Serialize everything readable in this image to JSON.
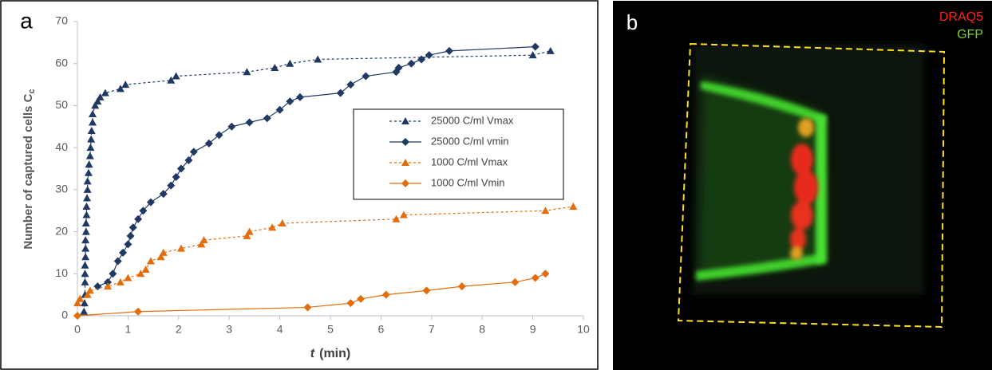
{
  "chart_data": {
    "type": "line",
    "panel_label": "a",
    "xlabel_var": "t",
    "xlabel_unit": "(min)",
    "ylabel": "Number of captured cells C",
    "ylabel_subscript": "c",
    "xlim": [
      0,
      10
    ],
    "xticks": [
      0,
      1,
      2,
      3,
      4,
      5,
      6,
      7,
      8,
      9,
      10
    ],
    "ylim": [
      0,
      70
    ],
    "yticks": [
      0,
      10,
      20,
      30,
      40,
      50,
      60,
      70
    ],
    "grid": false,
    "legend": "right",
    "series": [
      {
        "name": "25000 C/ml Vmax",
        "color": "#1f3864",
        "marker": "triangle",
        "dashed": true,
        "x": [
          0.13,
          0.14,
          0.15,
          0.15,
          0.15,
          0.15,
          0.16,
          0.16,
          0.16,
          0.17,
          0.17,
          0.18,
          0.18,
          0.19,
          0.2,
          0.2,
          0.22,
          0.23,
          0.25,
          0.26,
          0.27,
          0.28,
          0.3,
          0.3,
          0.35,
          0.4,
          0.45,
          0.55,
          0.85,
          0.95,
          1.85,
          1.95,
          3.35,
          3.9,
          4.2,
          4.75,
          9.0,
          9.35
        ],
        "values": [
          1,
          3,
          5,
          8,
          10,
          12,
          14,
          16,
          18,
          20,
          22,
          24,
          26,
          28,
          30,
          32,
          34,
          36,
          38,
          40,
          42,
          44,
          46,
          48,
          50,
          51,
          52,
          53,
          54,
          55,
          56,
          57,
          58,
          59,
          60,
          61,
          62,
          63
        ]
      },
      {
        "name": "25000 C/ml vmin",
        "color": "#1f3864",
        "marker": "diamond",
        "dashed": false,
        "x": [
          0.4,
          0.6,
          0.7,
          0.8,
          0.9,
          1.0,
          1.05,
          1.1,
          1.2,
          1.3,
          1.45,
          1.7,
          1.85,
          1.95,
          2.05,
          2.2,
          2.3,
          2.6,
          2.8,
          3.05,
          3.4,
          3.75,
          4.0,
          4.2,
          4.4,
          5.2,
          5.4,
          5.7,
          6.3,
          6.35,
          6.6,
          6.8,
          6.95,
          7.35,
          9.05
        ],
        "values": [
          7,
          8,
          10,
          13,
          15,
          17,
          19,
          21,
          23,
          25,
          27,
          29,
          31,
          33,
          35,
          37,
          39,
          41,
          43,
          45,
          46,
          47,
          49,
          51,
          52,
          53,
          55,
          57,
          58,
          59,
          60,
          61,
          62,
          63,
          64
        ]
      },
      {
        "name": "1000 C/ml Vmax",
        "color": "#e46c0a",
        "marker": "triangle",
        "dashed": true,
        "x": [
          0,
          0.05,
          0.2,
          0.25,
          0.6,
          0.85,
          1.0,
          1.25,
          1.35,
          1.45,
          1.65,
          1.7,
          2.05,
          2.45,
          2.5,
          3.35,
          3.4,
          3.85,
          4.05,
          6.3,
          6.45,
          9.25,
          9.8
        ],
        "values": [
          3,
          4,
          5,
          6,
          7,
          8,
          9,
          10,
          11,
          13,
          14,
          15,
          16,
          17,
          18,
          19,
          20,
          21,
          22,
          23,
          24,
          25,
          26
        ]
      },
      {
        "name": "1000 C/ml Vmin",
        "color": "#e46c0a",
        "marker": "diamond",
        "dashed": false,
        "x": [
          0,
          1.2,
          4.55,
          5.4,
          5.6,
          6.1,
          6.9,
          7.6,
          8.65,
          9.05,
          9.25
        ],
        "values": [
          0,
          1,
          2,
          3,
          4,
          5,
          6,
          7,
          8,
          9,
          10
        ]
      }
    ]
  },
  "image_panel": {
    "panel_label": "b",
    "channels": [
      {
        "name": "DRAQ5",
        "color": "#ff2020"
      },
      {
        "name": "GFP",
        "color": "#7ed321"
      }
    ]
  }
}
